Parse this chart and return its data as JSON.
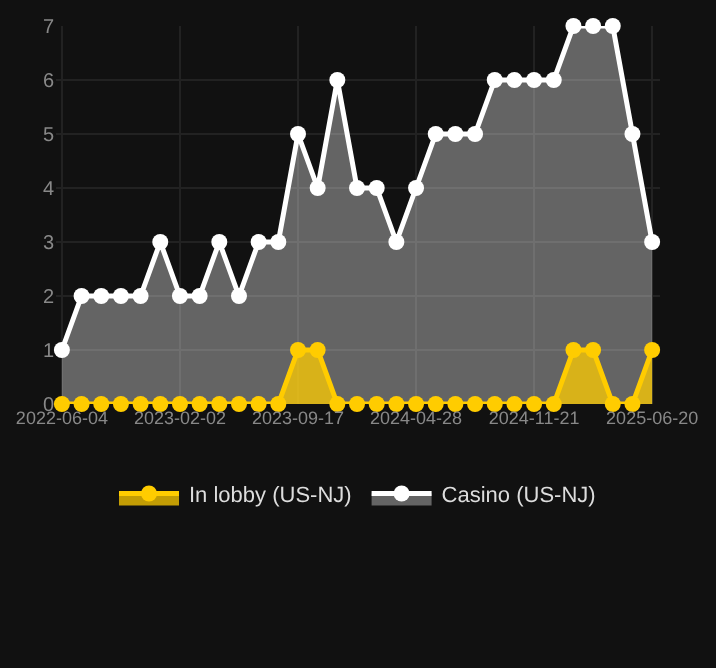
{
  "chart_data": {
    "type": "area",
    "categories": [
      "2022-06-04",
      null,
      null,
      null,
      null,
      null,
      "2023-02-02",
      null,
      null,
      null,
      null,
      null,
      "2023-09-17",
      null,
      null,
      null,
      null,
      null,
      "2024-04-28",
      null,
      null,
      null,
      null,
      null,
      "2024-11-21",
      null,
      null,
      null,
      null,
      null,
      "2025-06-20"
    ],
    "series": [
      {
        "name": "In lobby (US-NJ)",
        "color": "#ffcc00",
        "values": [
          0,
          0,
          0,
          0,
          0,
          0,
          0,
          0,
          0,
          0,
          0,
          0,
          1,
          1,
          0,
          0,
          0,
          0,
          0,
          0,
          0,
          0,
          0,
          0,
          0,
          0,
          1,
          1,
          0,
          0,
          1
        ]
      },
      {
        "name": "Casino (US-NJ)",
        "color": "#ffffff",
        "values": [
          1,
          2,
          2,
          2,
          2,
          3,
          2,
          2,
          3,
          2,
          3,
          3,
          5,
          4,
          6,
          4,
          4,
          3,
          4,
          5,
          5,
          5,
          6,
          6,
          6,
          6,
          7,
          7,
          7,
          5,
          3
        ]
      }
    ],
    "ylim": [
      0,
      7
    ],
    "yticks": [
      0,
      1,
      2,
      3,
      4,
      5,
      6,
      7
    ],
    "grid": true,
    "legend": "bottom",
    "marker": "circle",
    "line_style": "solid"
  }
}
